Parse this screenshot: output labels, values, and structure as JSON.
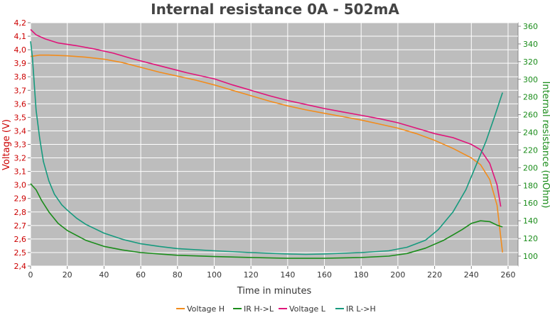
{
  "chart_data": {
    "type": "line",
    "title": "Internal resistance  0A - 502mA",
    "xlabel": "Time in minutes",
    "ylabel_left": "Voltage (V)",
    "ylabel_right": "Internal resistance (mOhm)",
    "xlim": [
      0,
      270
    ],
    "ylim_left": [
      2.4,
      4.2
    ],
    "ylim_right": [
      90,
      365
    ],
    "x_ticks": [
      0,
      20,
      40,
      60,
      80,
      100,
      120,
      140,
      160,
      180,
      200,
      220,
      240,
      260
    ],
    "y_left_ticks": [
      "2,4",
      "2,5",
      "2,6",
      "2,7",
      "2,8",
      "2,9",
      "3,0",
      "3,1",
      "3,2",
      "3,3",
      "3,4",
      "3,5",
      "3,6",
      "3,7",
      "3,8",
      "3,9",
      "4,0",
      "4,1",
      "4,2"
    ],
    "y_right_ticks": [
      100,
      120,
      140,
      160,
      180,
      200,
      220,
      240,
      260,
      280,
      300,
      320,
      340,
      360
    ],
    "grid": true,
    "legend_position": "bottom",
    "series": [
      {
        "name": "Voltage H",
        "axis": "left",
        "color": "#f28c1c",
        "points": [
          [
            0,
            3.95
          ],
          [
            5,
            3.96
          ],
          [
            10,
            3.96
          ],
          [
            20,
            3.955
          ],
          [
            30,
            3.945
          ],
          [
            40,
            3.93
          ],
          [
            50,
            3.905
          ],
          [
            60,
            3.87
          ],
          [
            70,
            3.835
          ],
          [
            80,
            3.805
          ],
          [
            90,
            3.775
          ],
          [
            100,
            3.74
          ],
          [
            110,
            3.7
          ],
          [
            120,
            3.66
          ],
          [
            130,
            3.62
          ],
          [
            140,
            3.585
          ],
          [
            150,
            3.555
          ],
          [
            160,
            3.53
          ],
          [
            170,
            3.505
          ],
          [
            180,
            3.48
          ],
          [
            190,
            3.45
          ],
          [
            200,
            3.42
          ],
          [
            210,
            3.38
          ],
          [
            220,
            3.33
          ],
          [
            230,
            3.27
          ],
          [
            240,
            3.2
          ],
          [
            245,
            3.15
          ],
          [
            250,
            3.04
          ],
          [
            254,
            2.85
          ],
          [
            257,
            2.5
          ]
        ]
      },
      {
        "name": "IR H->L",
        "axis": "right",
        "color": "#1a8c1a",
        "points": [
          [
            0,
            182
          ],
          [
            3,
            175
          ],
          [
            6,
            163
          ],
          [
            10,
            150
          ],
          [
            15,
            137
          ],
          [
            20,
            129
          ],
          [
            30,
            118
          ],
          [
            40,
            111
          ],
          [
            50,
            107
          ],
          [
            60,
            104
          ],
          [
            70,
            102.5
          ],
          [
            80,
            101
          ],
          [
            100,
            99.5
          ],
          [
            120,
            98.5
          ],
          [
            140,
            97.5
          ],
          [
            160,
            97.5
          ],
          [
            180,
            98.5
          ],
          [
            195,
            100
          ],
          [
            205,
            103
          ],
          [
            215,
            109
          ],
          [
            225,
            118
          ],
          [
            235,
            130
          ],
          [
            240,
            137
          ],
          [
            245,
            140
          ],
          [
            250,
            139
          ],
          [
            254,
            135
          ],
          [
            257,
            133
          ]
        ]
      },
      {
        "name": "Voltage L",
        "axis": "left",
        "color": "#e0147a",
        "points": [
          [
            0,
            4.15
          ],
          [
            3,
            4.11
          ],
          [
            8,
            4.08
          ],
          [
            15,
            4.05
          ],
          [
            25,
            4.03
          ],
          [
            35,
            4.005
          ],
          [
            45,
            3.975
          ],
          [
            55,
            3.935
          ],
          [
            65,
            3.9
          ],
          [
            75,
            3.865
          ],
          [
            85,
            3.83
          ],
          [
            100,
            3.785
          ],
          [
            110,
            3.74
          ],
          [
            120,
            3.7
          ],
          [
            130,
            3.66
          ],
          [
            140,
            3.625
          ],
          [
            150,
            3.595
          ],
          [
            160,
            3.565
          ],
          [
            170,
            3.54
          ],
          [
            180,
            3.515
          ],
          [
            190,
            3.49
          ],
          [
            200,
            3.46
          ],
          [
            210,
            3.42
          ],
          [
            220,
            3.38
          ],
          [
            230,
            3.35
          ],
          [
            240,
            3.3
          ],
          [
            245,
            3.26
          ],
          [
            250,
            3.16
          ],
          [
            254,
            3.0
          ],
          [
            256,
            2.84
          ]
        ]
      },
      {
        "name": "IR L->H",
        "axis": "right",
        "color": "#169a7e",
        "points": [
          [
            0,
            343
          ],
          [
            1,
            325
          ],
          [
            2,
            295
          ],
          [
            3,
            265
          ],
          [
            5,
            233
          ],
          [
            7,
            207
          ],
          [
            10,
            185
          ],
          [
            13,
            170
          ],
          [
            17,
            158
          ],
          [
            20,
            152
          ],
          [
            25,
            143
          ],
          [
            30,
            136
          ],
          [
            40,
            126
          ],
          [
            50,
            119
          ],
          [
            60,
            114
          ],
          [
            70,
            111
          ],
          [
            80,
            108.5
          ],
          [
            100,
            106
          ],
          [
            120,
            104
          ],
          [
            140,
            102.5
          ],
          [
            150,
            102
          ],
          [
            160,
            102.5
          ],
          [
            180,
            104
          ],
          [
            195,
            106
          ],
          [
            205,
            110
          ],
          [
            215,
            118
          ],
          [
            222,
            130
          ],
          [
            230,
            150
          ],
          [
            237,
            175
          ],
          [
            243,
            205
          ],
          [
            248,
            230
          ],
          [
            253,
            260
          ],
          [
            257,
            285
          ]
        ]
      }
    ]
  }
}
